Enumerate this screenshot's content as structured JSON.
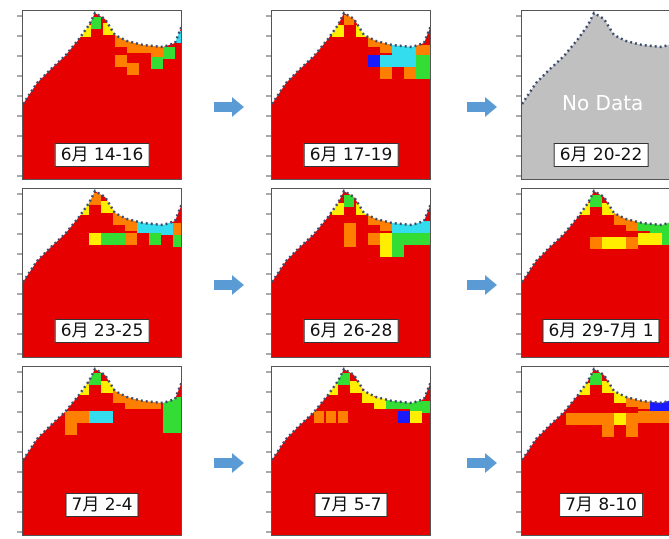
{
  "panels": [
    {
      "label": "6月 14-16",
      "has_data": true
    },
    {
      "label": "6月 17-19",
      "has_data": true
    },
    {
      "label": "6月 20-22",
      "has_data": false,
      "overlay_text": "No Data"
    },
    {
      "label": "6月 23-25",
      "has_data": true
    },
    {
      "label": "6月 26-28",
      "has_data": true
    },
    {
      "label": "6月 29-7月 1",
      "has_data": true
    },
    {
      "label": "7月 2-4",
      "has_data": true
    },
    {
      "label": "7月 5-7",
      "has_data": true
    },
    {
      "label": "7月 8-10",
      "has_data": true
    }
  ],
  "colors": {
    "dominant": "#e60000",
    "orange": "#ff7f00",
    "yellow": "#ffee00",
    "green": "#33dd33",
    "cyan": "#33ddee",
    "blue": "#1a1aff",
    "nodata": "#c0c0c0",
    "arrow": "#5b9bd5"
  }
}
